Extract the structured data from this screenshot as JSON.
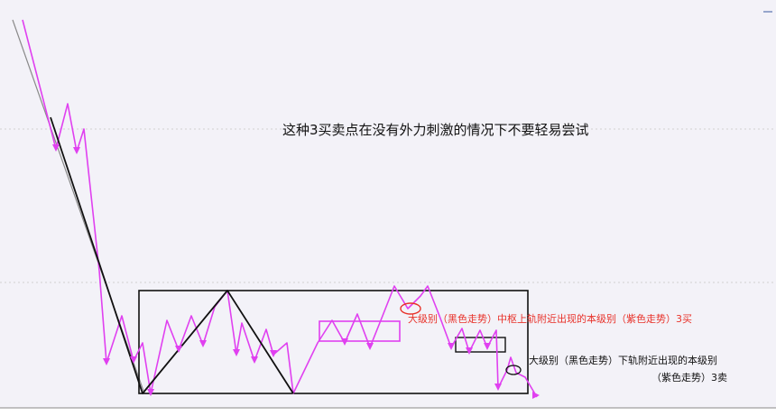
{
  "title": "这种3买卖点在没有外力刺激的情况下不要轻易尝试",
  "annotations": {
    "buy": "大级别（黑色走势）中枢上轨附近出现的本级别（紫色走势）3买",
    "sell_line1": "大级别（黑色走势）下轨附近出现的本级别",
    "sell_line2": "（紫色走势）3卖"
  },
  "colors": {
    "background": "#f3f2f8",
    "purple_trend": "#e040f0",
    "black_trend": "#111111",
    "gridline": "#d0d0d0",
    "highlight_ellipse": "#e8322a",
    "buy_text": "#e8322a",
    "sell_text": "#111111"
  },
  "legend": {
    "black_trend": "黑色走势",
    "purple_trend": "紫色走势"
  }
}
